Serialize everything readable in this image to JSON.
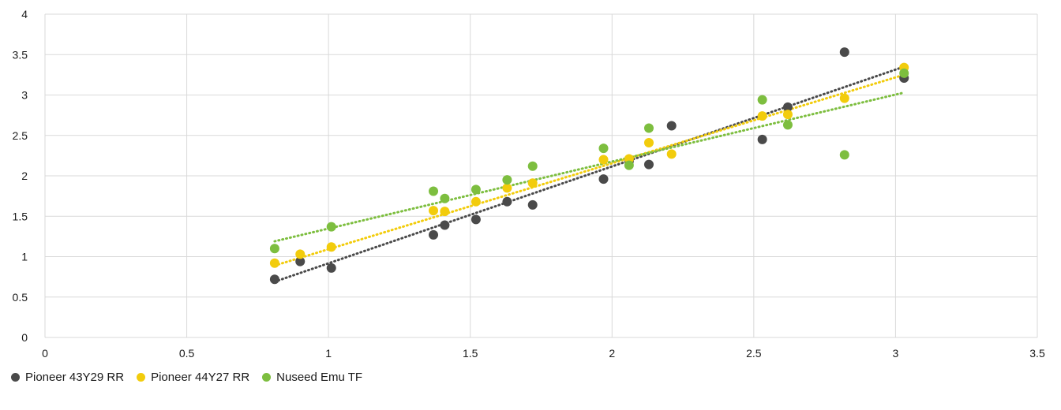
{
  "chart_data": {
    "type": "scatter",
    "title": "",
    "xlabel": "",
    "ylabel": "",
    "xlim": [
      0,
      3.5
    ],
    "ylim": [
      0,
      4
    ],
    "x_ticks": [
      "0",
      "0.5",
      "1",
      "1.5",
      "2",
      "2.5",
      "3",
      "3.5"
    ],
    "y_ticks": [
      "0",
      "0.5",
      "1",
      "1.5",
      "2",
      "2.5",
      "3",
      "3.5",
      "4"
    ],
    "grid": true,
    "legend_position": "bottom-left",
    "trendlines": "linear, dotted",
    "series": [
      {
        "name": "Pioneer 43Y29 RR",
        "color": "#4a4a4a",
        "points": [
          [
            0.81,
            0.72
          ],
          [
            0.9,
            0.94
          ],
          [
            1.01,
            0.86
          ],
          [
            1.37,
            1.27
          ],
          [
            1.41,
            1.39
          ],
          [
            1.52,
            1.46
          ],
          [
            1.63,
            1.68
          ],
          [
            1.72,
            1.64
          ],
          [
            1.97,
            1.96
          ],
          [
            2.06,
            2.18
          ],
          [
            2.13,
            2.14
          ],
          [
            2.21,
            2.62
          ],
          [
            2.53,
            2.45
          ],
          [
            2.62,
            2.85
          ],
          [
            2.82,
            3.53
          ],
          [
            3.03,
            3.21
          ]
        ],
        "trend": [
          [
            0.81,
            0.69
          ],
          [
            3.03,
            3.35
          ]
        ]
      },
      {
        "name": "Pioneer 44Y27 RR",
        "color": "#f2cc0c",
        "points": [
          [
            0.81,
            0.92
          ],
          [
            0.9,
            1.03
          ],
          [
            1.01,
            1.12
          ],
          [
            1.37,
            1.57
          ],
          [
            1.41,
            1.56
          ],
          [
            1.52,
            1.68
          ],
          [
            1.63,
            1.85
          ],
          [
            1.72,
            1.91
          ],
          [
            1.97,
            2.2
          ],
          [
            2.06,
            2.21
          ],
          [
            2.13,
            2.41
          ],
          [
            2.21,
            2.27
          ],
          [
            2.53,
            2.74
          ],
          [
            2.62,
            2.76
          ],
          [
            2.82,
            2.96
          ],
          [
            3.03,
            3.34
          ]
        ],
        "trend": [
          [
            0.81,
            0.89
          ],
          [
            3.03,
            3.25
          ]
        ]
      },
      {
        "name": "Nuseed Emu TF",
        "color": "#7dbe3f",
        "points": [
          [
            0.81,
            1.1
          ],
          [
            1.01,
            1.37
          ],
          [
            1.37,
            1.81
          ],
          [
            1.41,
            1.72
          ],
          [
            1.52,
            1.83
          ],
          [
            1.63,
            1.95
          ],
          [
            1.72,
            2.12
          ],
          [
            1.97,
            2.34
          ],
          [
            2.06,
            2.13
          ],
          [
            2.13,
            2.59
          ],
          [
            2.53,
            2.94
          ],
          [
            2.62,
            2.63
          ],
          [
            2.82,
            2.26
          ],
          [
            3.03,
            3.27
          ]
        ],
        "trend": [
          [
            0.81,
            1.19
          ],
          [
            3.03,
            3.03
          ]
        ]
      }
    ]
  }
}
